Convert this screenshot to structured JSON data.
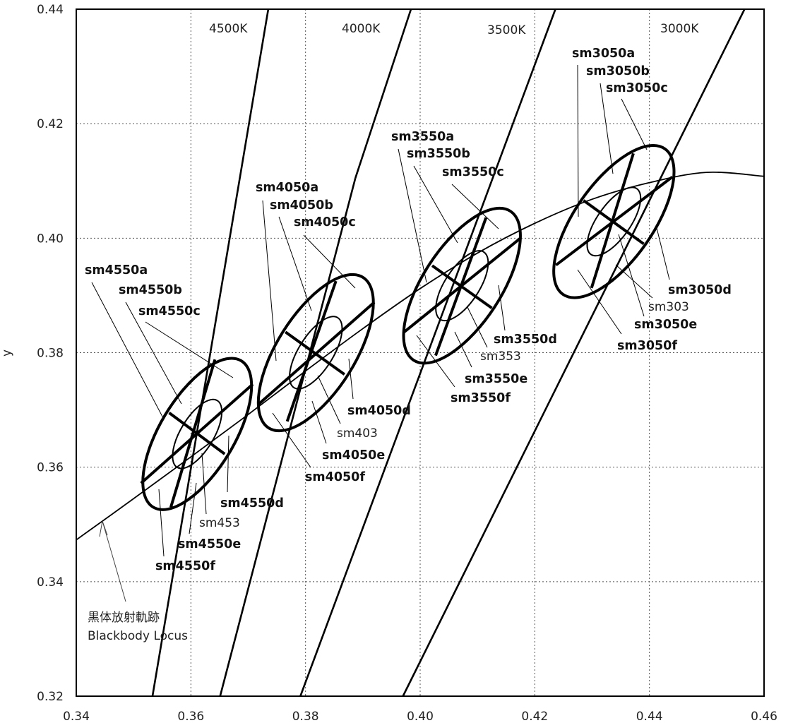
{
  "chart_data": {
    "type": "scatter",
    "xlabel": "",
    "ylabel": "y",
    "xlim": [
      0.34,
      0.46
    ],
    "ylim": [
      0.32,
      0.44
    ],
    "xticks": [
      "0.34",
      "0.36",
      "0.38",
      "0.40",
      "0.42",
      "0.44",
      "0.46"
    ],
    "yticks": [
      "0.32",
      "0.34",
      "0.36",
      "0.38",
      "0.40",
      "0.42",
      "0.44"
    ],
    "grid": true,
    "blackbody_locus": {
      "label_lines": [
        "黒体放射軌跡",
        "Blackbody Locus"
      ],
      "points": [
        [
          0.34,
          0.3473
        ],
        [
          0.35,
          0.3545
        ],
        [
          0.36,
          0.3618
        ],
        [
          0.37,
          0.3692
        ],
        [
          0.38,
          0.3768
        ],
        [
          0.39,
          0.3842
        ],
        [
          0.4,
          0.3912
        ],
        [
          0.41,
          0.3974
        ],
        [
          0.42,
          0.4026
        ],
        [
          0.43,
          0.4068
        ],
        [
          0.44,
          0.4097
        ],
        [
          0.45,
          0.4115
        ],
        [
          0.46,
          0.4108
        ]
      ]
    },
    "cct_lines": [
      {
        "label": "4500K",
        "points": [
          [
            0.3533,
            0.32
          ],
          [
            0.3735,
            0.44
          ]
        ]
      },
      {
        "label": "4000K",
        "points": [
          [
            0.3651,
            0.32
          ],
          [
            0.3887,
            0.4105
          ]
        ]
      },
      {
        "label": "4000K-upper",
        "points": [
          [
            0.3887,
            0.4105
          ],
          [
            0.3984,
            0.44
          ]
        ]
      },
      {
        "label": "3500K",
        "points": [
          [
            0.3791,
            0.32
          ],
          [
            0.4236,
            0.44
          ]
        ]
      },
      {
        "label": "3000K",
        "points": [
          [
            0.397,
            0.32
          ],
          [
            0.4566,
            0.44
          ]
        ]
      }
    ],
    "cct_labels": [
      "4500K",
      "4000K",
      "3500K",
      "3000K"
    ],
    "groups": [
      {
        "center": [
          0.3611,
          0.3658
        ],
        "outer_ellipse": {
          "rx": 0.0149,
          "ry": 0.0065,
          "rotation_deg": 59
        },
        "inner_ellipse": {
          "rx": 0.0068,
          "ry": 0.0029,
          "rotation_deg": 59
        },
        "axes": {
          "major": [
            [
              0.3513,
              0.3572
            ],
            [
              0.3708,
              0.3745
            ]
          ],
          "minor": [
            [
              0.3562,
              0.3695
            ],
            [
              0.3659,
              0.3623
            ]
          ],
          "cct": [
            [
              0.3565,
              0.353
            ],
            [
              0.3642,
              0.3788
            ]
          ]
        },
        "labels_bold": [
          "sm4550a",
          "sm4550b",
          "sm4550c",
          "sm4550d",
          "sm4550e",
          "sm4550f"
        ],
        "label_center": "sm453"
      },
      {
        "center": [
          0.3818,
          0.38
        ],
        "outer_ellipse": {
          "rx": 0.0155,
          "ry": 0.0068,
          "rotation_deg": 58
        },
        "inner_ellipse": {
          "rx": 0.0072,
          "ry": 0.003,
          "rotation_deg": 58
        },
        "axes": {
          "major": [
            [
              0.3718,
              0.371
            ],
            [
              0.392,
              0.3888
            ]
          ],
          "minor": [
            [
              0.3765,
              0.3836
            ],
            [
              0.3868,
              0.3762
            ]
          ],
          "cct": [
            [
              0.3768,
              0.368
            ],
            [
              0.3853,
              0.3925
            ]
          ]
        },
        "labels_bold": [
          "sm4050a",
          "sm4050b",
          "sm4050c",
          "sm4050d",
          "sm4050e",
          "sm4050f"
        ],
        "label_center": "sm403"
      },
      {
        "center": [
          0.4073,
          0.3917
        ],
        "outer_ellipse": {
          "rx": 0.0155,
          "ry": 0.0068,
          "rotation_deg": 57
        },
        "inner_ellipse": {
          "rx": 0.007,
          "ry": 0.003,
          "rotation_deg": 57
        },
        "axes": {
          "major": [
            [
              0.3972,
              0.3836
            ],
            [
              0.4175,
              0.4
            ]
          ],
          "minor": [
            [
              0.4021,
              0.3952
            ],
            [
              0.4125,
              0.3878
            ]
          ],
          "cct": [
            [
              0.4027,
              0.3795
            ],
            [
              0.4115,
              0.4036
            ]
          ]
        },
        "labels_bold": [
          "sm3550a",
          "sm3550b",
          "sm3550c",
          "sm3550d",
          "sm3550e",
          "sm3550f"
        ],
        "label_center": "sm353"
      },
      {
        "center": [
          0.4338,
          0.4029
        ],
        "outer_ellipse": {
          "rx": 0.0155,
          "ry": 0.0068,
          "rotation_deg": 55
        },
        "inner_ellipse": {
          "rx": 0.007,
          "ry": 0.0029,
          "rotation_deg": 55
        },
        "axes": {
          "major": [
            [
              0.4237,
              0.3953
            ],
            [
              0.444,
              0.4107
            ]
          ],
          "minor": [
            [
              0.4285,
              0.4066
            ],
            [
              0.439,
              0.399
            ]
          ],
          "cct": [
            [
              0.4299,
              0.3913
            ],
            [
              0.4372,
              0.4148
            ]
          ]
        },
        "labels_bold": [
          "sm3050a",
          "sm3050b",
          "sm3050c",
          "sm3050d",
          "sm3050e",
          "sm3050f"
        ],
        "label_center": "sm303"
      }
    ]
  }
}
